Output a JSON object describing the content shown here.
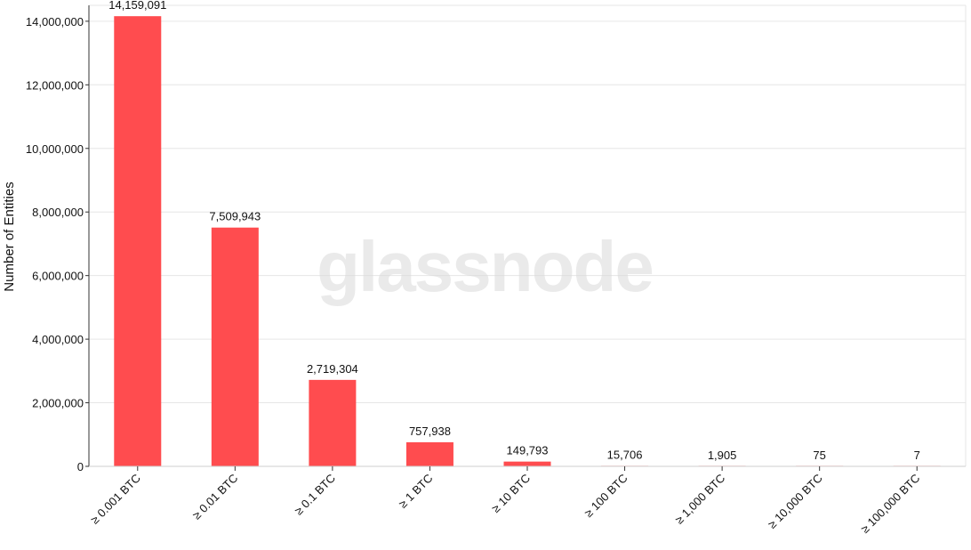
{
  "watermark": "glassnode",
  "chart_data": {
    "type": "bar",
    "title": "",
    "xlabel": "",
    "ylabel": "Number of Entities",
    "categories": [
      "≥ 0.001 BTC",
      "≥ 0.01 BTC",
      "≥ 0.1 BTC",
      "≥ 1 BTC",
      "≥ 10 BTC",
      "≥ 100 BTC",
      "≥ 1,000 BTC",
      "≥ 10,000 BTC",
      "≥ 100,000 BTC"
    ],
    "values": [
      14159091,
      7509943,
      2719304,
      757938,
      149793,
      15706,
      1905,
      75,
      7
    ],
    "data_labels": [
      "14,159,091",
      "7,509,943",
      "2,719,304",
      "757,938",
      "149,793",
      "15,706",
      "1,905",
      "75",
      "7"
    ],
    "ylim": [
      0,
      14500000
    ],
    "yticks": [
      0,
      2000000,
      4000000,
      6000000,
      8000000,
      10000000,
      12000000,
      14000000
    ],
    "ytick_labels": [
      "0",
      "2,000,000",
      "4,000,000",
      "6,000,000",
      "8,000,000",
      "10,000,000",
      "12,000,000",
      "14,000,000"
    ],
    "grid": true,
    "legend": "none",
    "bar_color": "#ff4c4f",
    "grid_color": "#e6e6e6"
  }
}
